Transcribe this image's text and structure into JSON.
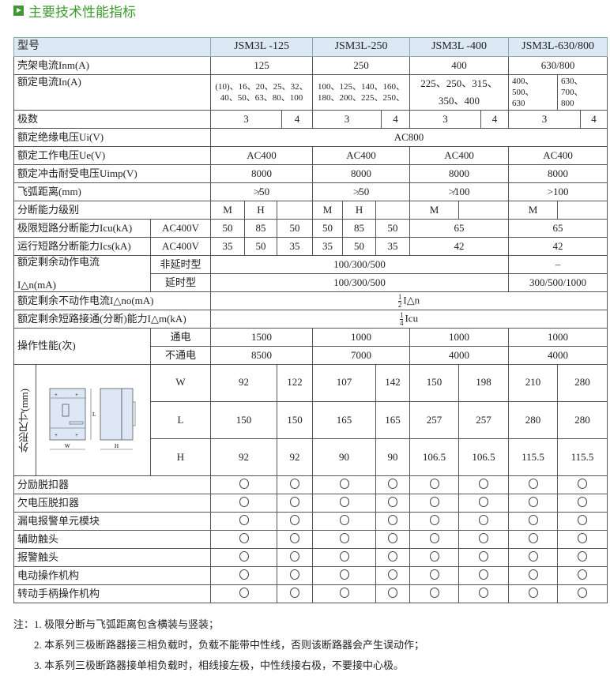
{
  "title": "主要技术性能指标",
  "header": {
    "label": "型号",
    "models": [
      "JSM3L -125",
      "JSM3L-250",
      "JSM3L -400",
      "JSM3L-630/800"
    ]
  },
  "frame_current": {
    "label": "壳架电流Inm(A)",
    "values": [
      "125",
      "250",
      "400",
      "630/800"
    ]
  },
  "rated_current": {
    "label": "额定电流In(A)",
    "v125": [
      "(10)、16、20、25、32、",
      "40、50、63、80、100"
    ],
    "v250": [
      "100、125、140、160、",
      "180、200、225、250、"
    ],
    "v400": [
      "225、250、315、",
      "350、400"
    ],
    "v630a": [
      "400、",
      "500、",
      "630"
    ],
    "v800": [
      "630、",
      "700、",
      "800"
    ]
  },
  "poles": {
    "label": "极数",
    "values": [
      "3",
      "4",
      "3",
      "4",
      "3",
      "4",
      "3",
      "4"
    ]
  },
  "ui": {
    "label": "额定绝缘电压Ui(V)",
    "value": "AC800"
  },
  "ue": {
    "label": "额定工作电压Ue(V)",
    "values": [
      "AC400",
      "AC400",
      "AC400",
      "AC400"
    ]
  },
  "uimp": {
    "label": "额定冲击耐受电压Uimp(V)",
    "values": [
      "8000",
      "8000",
      "8000",
      "8000"
    ]
  },
  "arc": {
    "label": "飞弧距离(mm)",
    "values": [
      "≯50",
      "≯50",
      "≯100",
      ">100"
    ]
  },
  "level": {
    "label": "分断能力级别",
    "values": [
      "M",
      "H",
      "M",
      "H",
      "M",
      "M"
    ]
  },
  "icu": {
    "label": "极限短路分断能力Icu(kA)",
    "voltage": "AC400V",
    "values": [
      "50",
      "85",
      "50",
      "50",
      "85",
      "50",
      "65",
      "65"
    ]
  },
  "ics": {
    "label": "运行短路分断能力Ics(kA)",
    "voltage": "AC400V",
    "values": [
      "35",
      "50",
      "35",
      "35",
      "50",
      "35",
      "42",
      "42"
    ]
  },
  "residual": {
    "label1": "额定剩余动作电流",
    "label2": "I△n(mA)",
    "nondelay": "非延时型",
    "delay": "延时型",
    "nondelay_a": "100/300/500",
    "nondelay_b": "–",
    "delay_a": "100/300/500",
    "delay_b": "300/500/1000"
  },
  "nonop": {
    "label": "额定剩余不动作电流I△no(mA)",
    "num": "1",
    "den": "2",
    "value": "I△n"
  },
  "making": {
    "label": "额定剩余短路接通(分断)能力I△m(kA)",
    "num": "1",
    "den": "4",
    "value": "Icu"
  },
  "operation": {
    "label": "操作性能(次)",
    "on": "通电",
    "off": "不通电",
    "on_values": [
      "1500",
      "1000",
      "1000",
      "1000"
    ],
    "off_values": [
      "8500",
      "7000",
      "4000",
      "4000"
    ]
  },
  "dimensions": {
    "label": "外形尺寸(mm)",
    "drawing_w": "W",
    "drawing_h": "H",
    "drawing_l": "L",
    "rows": [
      {
        "key": "W",
        "values": [
          "92",
          "122",
          "107",
          "142",
          "150",
          "198",
          "210",
          "280"
        ]
      },
      {
        "key": "L",
        "values": [
          "150",
          "150",
          "165",
          "165",
          "257",
          "257",
          "280",
          "280"
        ]
      },
      {
        "key": "H",
        "values": [
          "92",
          "92",
          "90",
          "90",
          "106.5",
          "106.5",
          "115.5",
          "115.5"
        ]
      }
    ]
  },
  "accessories": [
    "分励脱扣器",
    "欠电压脱扣器",
    "漏电报警单元模块",
    "辅助触头",
    "报警触头",
    "电动操作机构",
    "转动手柄操作机构"
  ],
  "notes": [
    "注：1. 极限分断与飞弧距离包含横装与竖装；",
    "2. 本系列三极断路器接三相负载时，负载不能带中性线，否则该断路器会产生误动作；",
    "3. 本系列三极断路器接单相负载时，相线接左极，中性线接右极，不要接中心极。"
  ],
  "colors": {
    "title": "#3c9a2e",
    "header_bg": "#dce9f5"
  }
}
